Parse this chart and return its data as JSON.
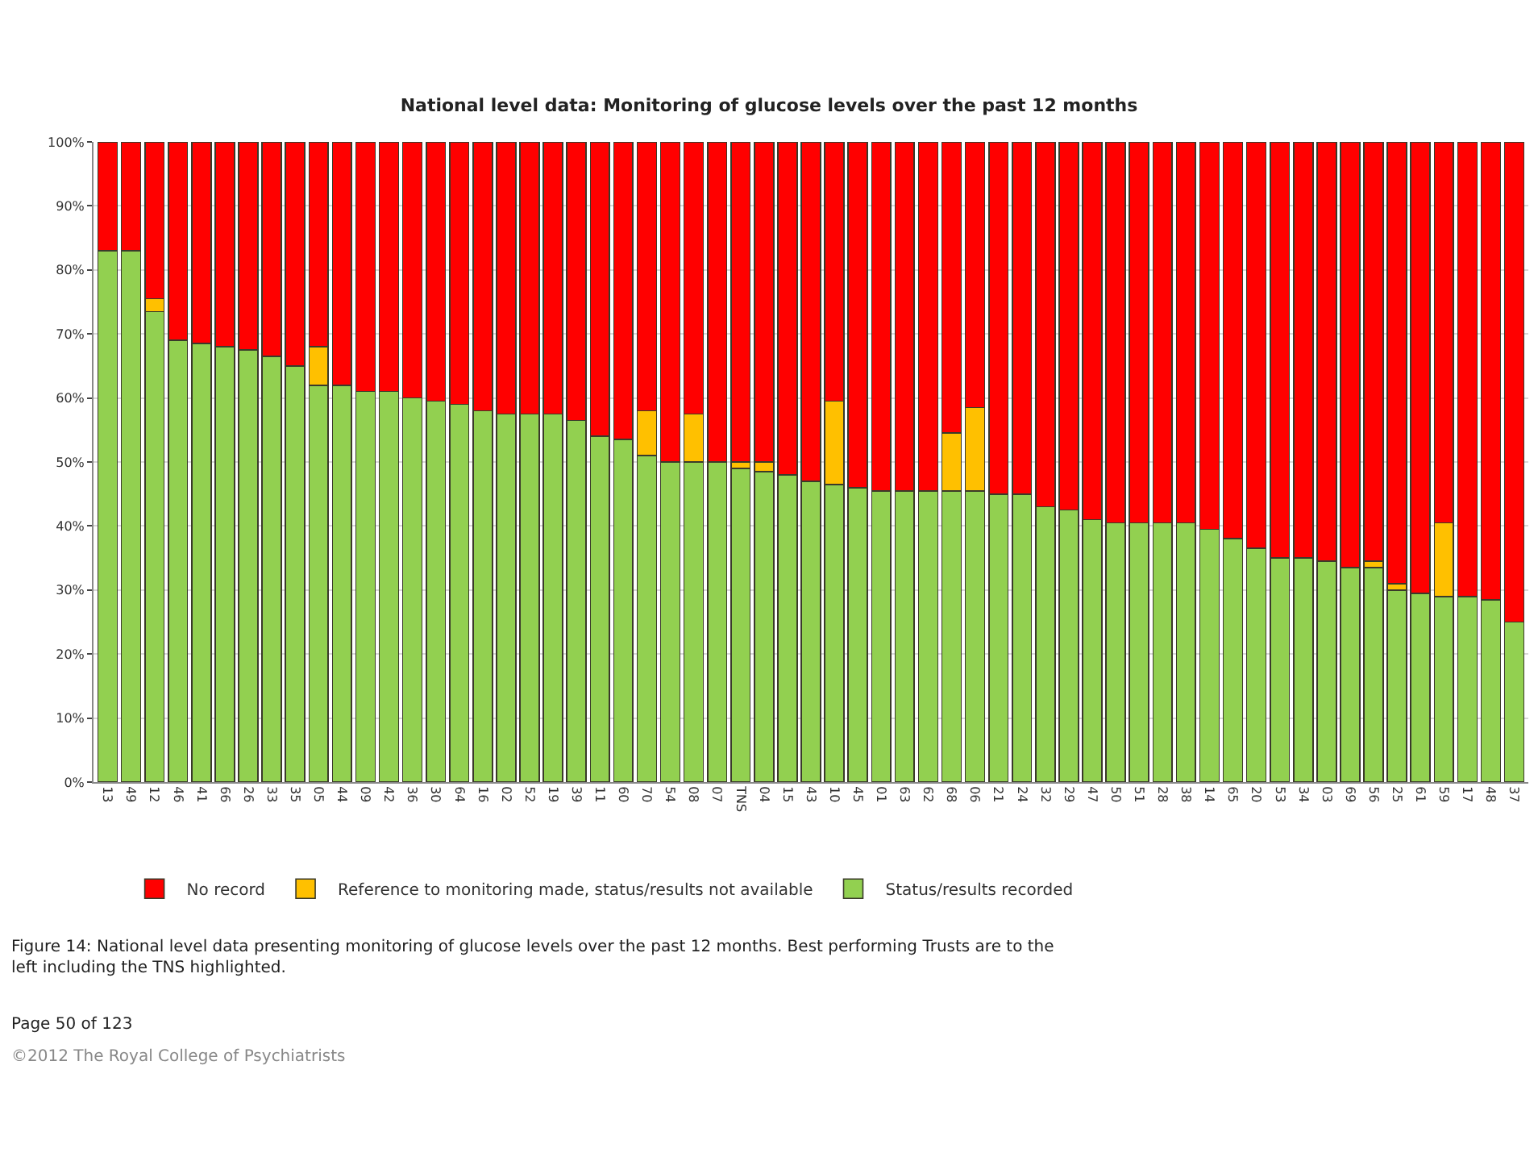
{
  "chart_data": {
    "type": "bar",
    "stacked": true,
    "title": "National level data: Monitoring of glucose levels over the past 12 months",
    "categories": [
      "13",
      "49",
      "12",
      "46",
      "41",
      "66",
      "26",
      "33",
      "35",
      "05",
      "44",
      "09",
      "42",
      "36",
      "30",
      "64",
      "16",
      "02",
      "52",
      "19",
      "39",
      "11",
      "60",
      "70",
      "54",
      "08",
      "07",
      "TNS",
      "04",
      "15",
      "43",
      "10",
      "45",
      "01",
      "63",
      "62",
      "68",
      "06",
      "21",
      "24",
      "32",
      "29",
      "47",
      "50",
      "51",
      "28",
      "38",
      "14",
      "65",
      "20",
      "53",
      "34",
      "03",
      "69",
      "56",
      "25",
      "61",
      "59",
      "17",
      "48",
      "37"
    ],
    "series": [
      {
        "name": "Status/results recorded",
        "color": "#92d050",
        "values": [
          83,
          83,
          73.5,
          69,
          68.5,
          68,
          67.5,
          66.5,
          65,
          62,
          62,
          61,
          61,
          60,
          59.5,
          59,
          58,
          57.5,
          57.5,
          57.5,
          56.5,
          54,
          53.5,
          51,
          50,
          50,
          50,
          49,
          48.5,
          48,
          47,
          46.5,
          46,
          45.5,
          45.5,
          45.5,
          45.5,
          45.5,
          45,
          45,
          43,
          42.5,
          41,
          40.5,
          40.5,
          40.5,
          40.5,
          39.5,
          38,
          36.5,
          35,
          35,
          34.5,
          33.5,
          33.5,
          30,
          29.5,
          29,
          29,
          28.5,
          25
        ]
      },
      {
        "name": "Reference to monitoring made, status/results not available",
        "color": "#ffc000",
        "values": [
          0,
          0,
          2,
          0,
          0,
          0,
          0,
          0,
          0,
          6,
          0,
          0,
          0,
          0,
          0,
          0,
          0,
          0,
          0,
          0,
          0,
          0,
          0,
          7,
          0,
          7.5,
          0,
          1,
          1.5,
          0,
          0,
          13,
          0,
          0,
          0,
          0,
          9,
          13,
          0,
          0,
          0,
          0,
          0,
          0,
          0,
          0,
          0,
          0,
          0,
          0,
          0,
          0,
          0,
          0,
          1,
          1,
          0,
          11.5,
          0,
          0,
          0
        ]
      },
      {
        "name": "No record",
        "color": "#ff0000",
        "values": [
          17,
          17,
          24.5,
          31,
          31.5,
          32,
          32.5,
          33.5,
          35,
          32,
          38,
          39,
          39,
          40,
          40.5,
          41,
          42,
          42.5,
          42.5,
          42.5,
          43.5,
          46,
          46.5,
          42,
          50,
          42.5,
          50,
          50,
          50,
          52,
          53,
          40.5,
          54,
          54.5,
          54.5,
          54.5,
          45.5,
          41.5,
          55,
          55,
          57,
          57.5,
          59,
          59.5,
          59.5,
          59.5,
          59.5,
          60.5,
          62,
          63.5,
          65,
          65,
          65.5,
          66.5,
          65.5,
          69,
          70.5,
          59.5,
          71,
          71.5,
          75
        ]
      }
    ],
    "ylim": [
      0,
      100
    ],
    "yticks": [
      {
        "value": 0,
        "label": "0%"
      },
      {
        "value": 10,
        "label": "10%"
      },
      {
        "value": 20,
        "label": "20%"
      },
      {
        "value": 30,
        "label": "30%"
      },
      {
        "value": 40,
        "label": "40%"
      },
      {
        "value": 50,
        "label": "50%"
      },
      {
        "value": 60,
        "label": "60%"
      },
      {
        "value": 70,
        "label": "70%"
      },
      {
        "value": 80,
        "label": "80%"
      },
      {
        "value": 90,
        "label": "90%"
      },
      {
        "value": 100,
        "label": "100%"
      }
    ],
    "grid": "y",
    "legend": "bottom",
    "annotations": [
      "Figure 14: National level data presenting monitoring of glucose levels over the past 12 months. Best performing Trusts are to the left including the TNS highlighted.",
      "Page 50 of 123",
      "©2012 The Royal College of Psychiatrists"
    ]
  }
}
